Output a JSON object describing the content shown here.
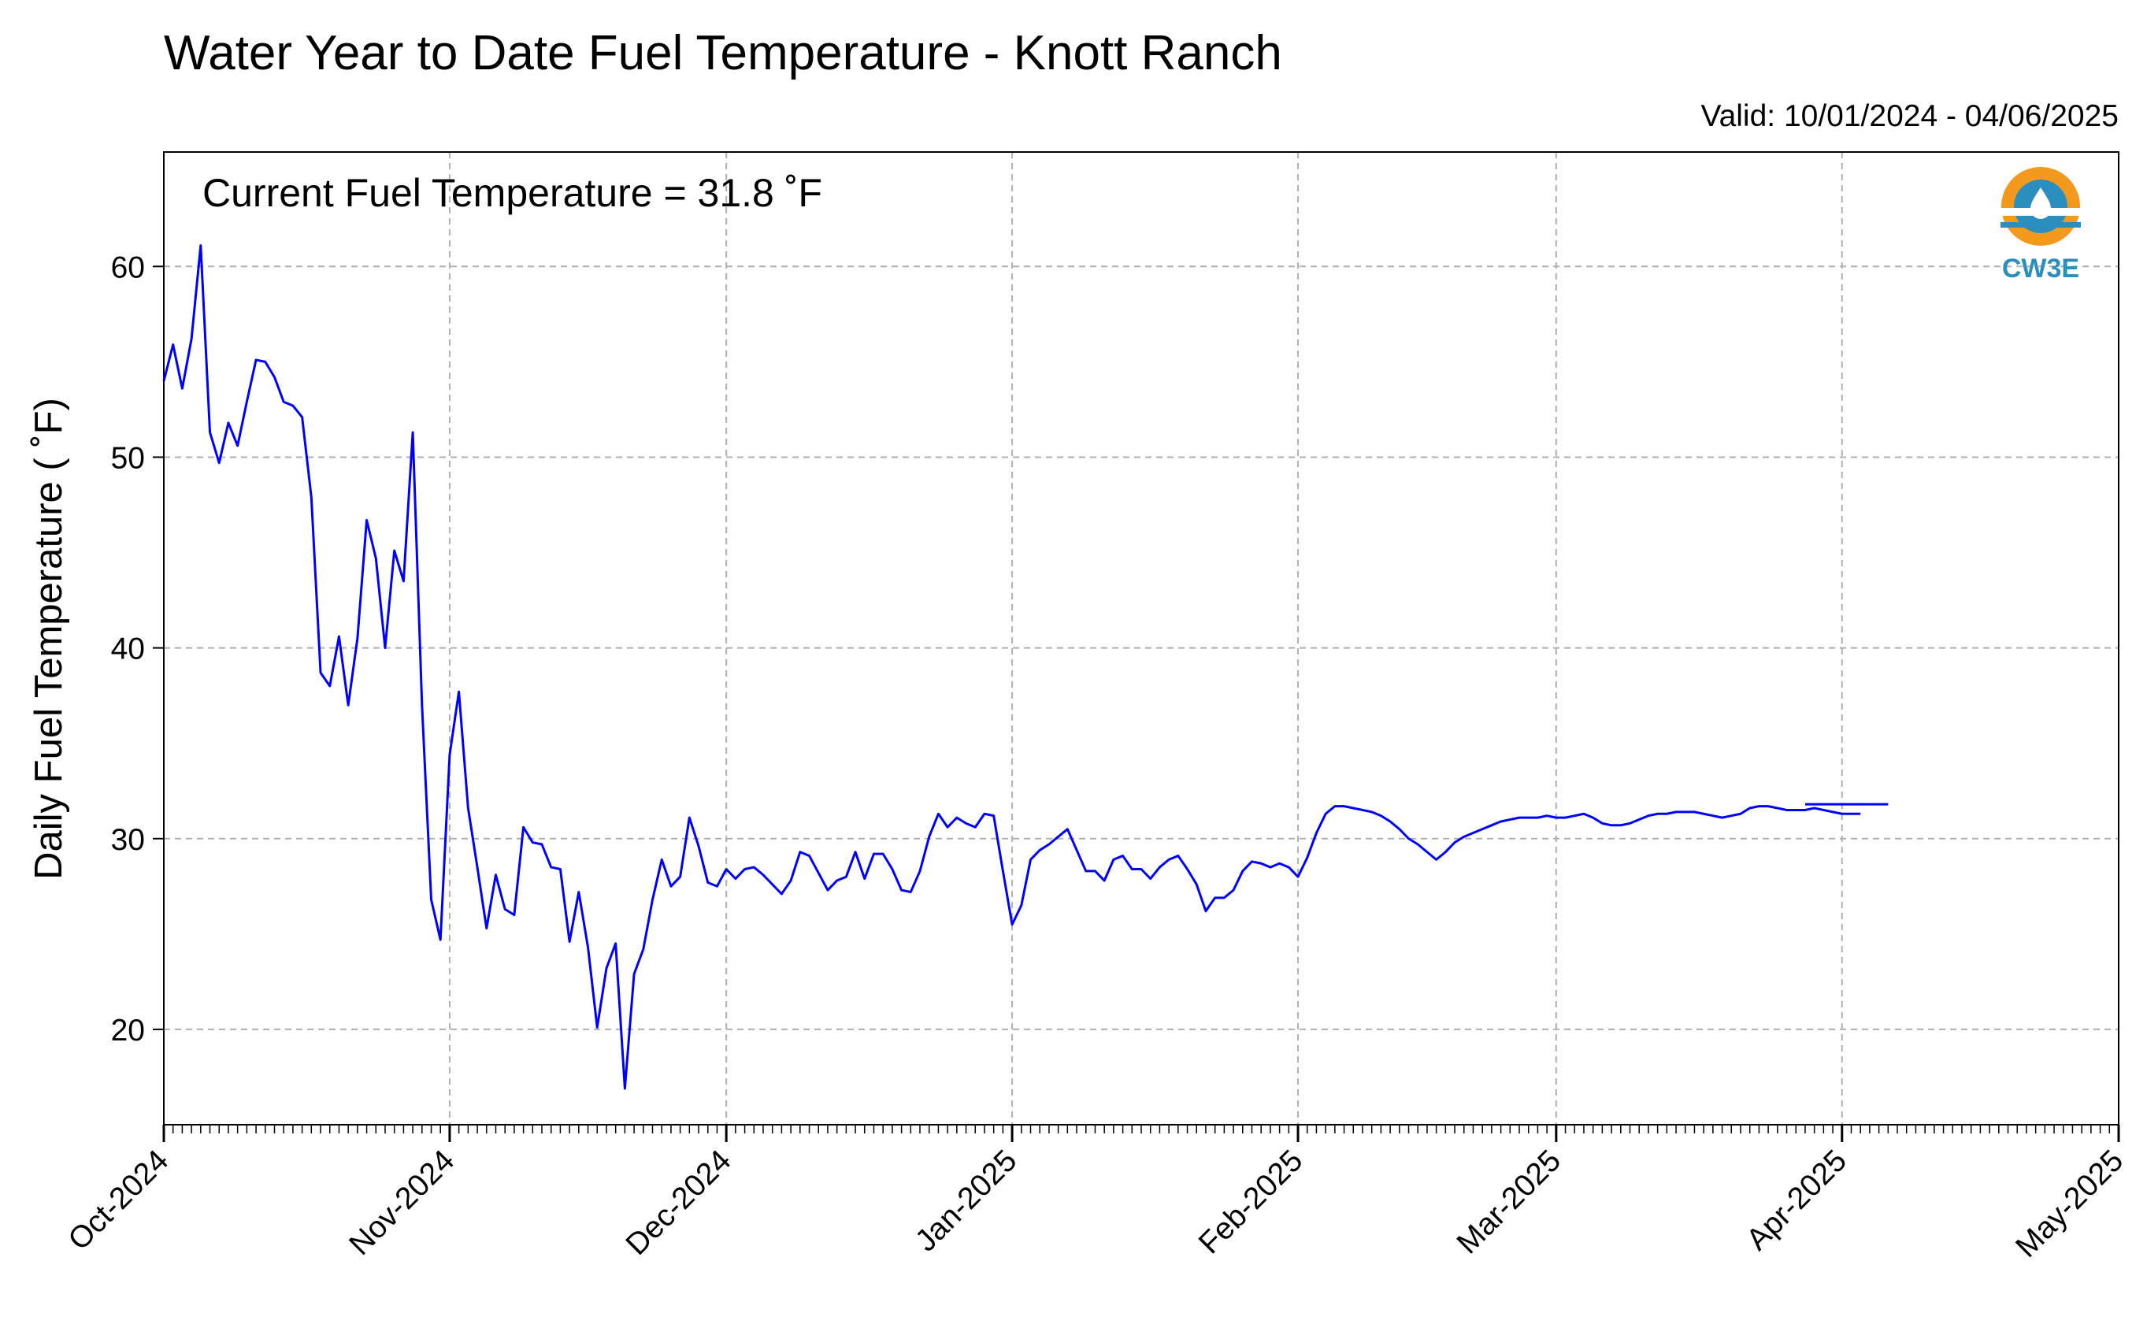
{
  "chart_data": {
    "type": "line",
    "title": "Water Year to Date Fuel Temperature - Knott Ranch",
    "subtitle": "Valid: 10/01/2024 - 04/06/2025",
    "ylabel": "Daily Fuel Temperature ( ˚F)",
    "xlabel": "",
    "annotation": "Current Fuel Temperature = 31.8  ˚F",
    "logo_text": "CW3E",
    "ylim": [
      15,
      66
    ],
    "yticks": [
      20,
      30,
      40,
      50,
      60
    ],
    "xlim": [
      "2024-10-01",
      "2025-05-01"
    ],
    "xticks": [
      {
        "date": "2024-10-01",
        "label": "Oct-2024"
      },
      {
        "date": "2024-11-01",
        "label": "Nov-2024"
      },
      {
        "date": "2024-12-01",
        "label": "Dec-2024"
      },
      {
        "date": "2025-01-01",
        "label": "Jan-2025"
      },
      {
        "date": "2025-02-01",
        "label": "Feb-2025"
      },
      {
        "date": "2025-03-01",
        "label": "Mar-2025"
      },
      {
        "date": "2025-04-01",
        "label": "Apr-2025"
      },
      {
        "date": "2025-05-01",
        "label": "May-2025"
      }
    ],
    "grid": true,
    "line_color": "#0000ff",
    "series": [
      {
        "segments": [
          {
            "start_date": "2024-10-01",
            "values": [
              54.0,
              55.9,
              53.6,
              56.2,
              61.1,
              51.3,
              49.7,
              51.8,
              50.6,
              52.9,
              55.1,
              55.0,
              54.2,
              52.9,
              52.7,
              52.1,
              47.9,
              38.7,
              38.0,
              40.6,
              37.0,
              40.5,
              46.7,
              44.7,
              40.0,
              45.1,
              43.5,
              51.3,
              37.0,
              26.8,
              24.7,
              34.4,
              37.7,
              31.6,
              28.5,
              25.3,
              28.1,
              26.3,
              26.0,
              30.6,
              29.8,
              29.7,
              28.5,
              28.4,
              24.6,
              27.2,
              24.3,
              20.1,
              23.2,
              24.5,
              16.9,
              22.9,
              24.2,
              26.8,
              28.9,
              27.5,
              28.0,
              31.1,
              29.6,
              27.7,
              27.5,
              28.4,
              27.9,
              28.4,
              28.5,
              28.1,
              27.6,
              27.1,
              27.8,
              29.3,
              29.1,
              28.2,
              27.3,
              27.8,
              28.0,
              29.3,
              27.9,
              29.2,
              29.2,
              28.4,
              27.3,
              27.2,
              28.3,
              30.1,
              31.3,
              30.6,
              31.1,
              30.8,
              30.6,
              31.3,
              31.2,
              28.3,
              25.5,
              26.5,
              28.9,
              29.4,
              29.7,
              30.1,
              30.5,
              29.4,
              28.3,
              28.3,
              27.8,
              28.9,
              29.1,
              28.4,
              28.4,
              27.9,
              28.5,
              28.9,
              29.1,
              28.4,
              27.6,
              26.2,
              26.9,
              26.9,
              27.3,
              28.3,
              28.8,
              28.7,
              28.5,
              28.7,
              28.5,
              28.0,
              29.0,
              30.3,
              31.3,
              31.7,
              31.7,
              31.6,
              31.5,
              31.4,
              31.2,
              30.9,
              30.5,
              30.0,
              29.7,
              29.3,
              28.9,
              29.3,
              29.8,
              30.1,
              30.3,
              30.5,
              30.7,
              30.9,
              31.0,
              31.1,
              31.1,
              31.1,
              31.2,
              31.1,
              31.1,
              31.2,
              31.3,
              31.1,
              30.8,
              30.7,
              30.7,
              30.8,
              31.0,
              31.2,
              31.3,
              31.3,
              31.4,
              31.4,
              31.4,
              31.3,
              31.2,
              31.1,
              31.2,
              31.3,
              31.6,
              31.7,
              31.7,
              31.6,
              31.5,
              31.5,
              31.5,
              31.6,
              31.5,
              31.4,
              31.3,
              31.3,
              31.3
            ]
          },
          {
            "start_date": "2025-03-28",
            "values": [
              31.8,
              31.8,
              31.8,
              31.8,
              31.8,
              31.8,
              31.8,
              31.8,
              31.8,
              31.8
            ]
          }
        ]
      }
    ]
  }
}
